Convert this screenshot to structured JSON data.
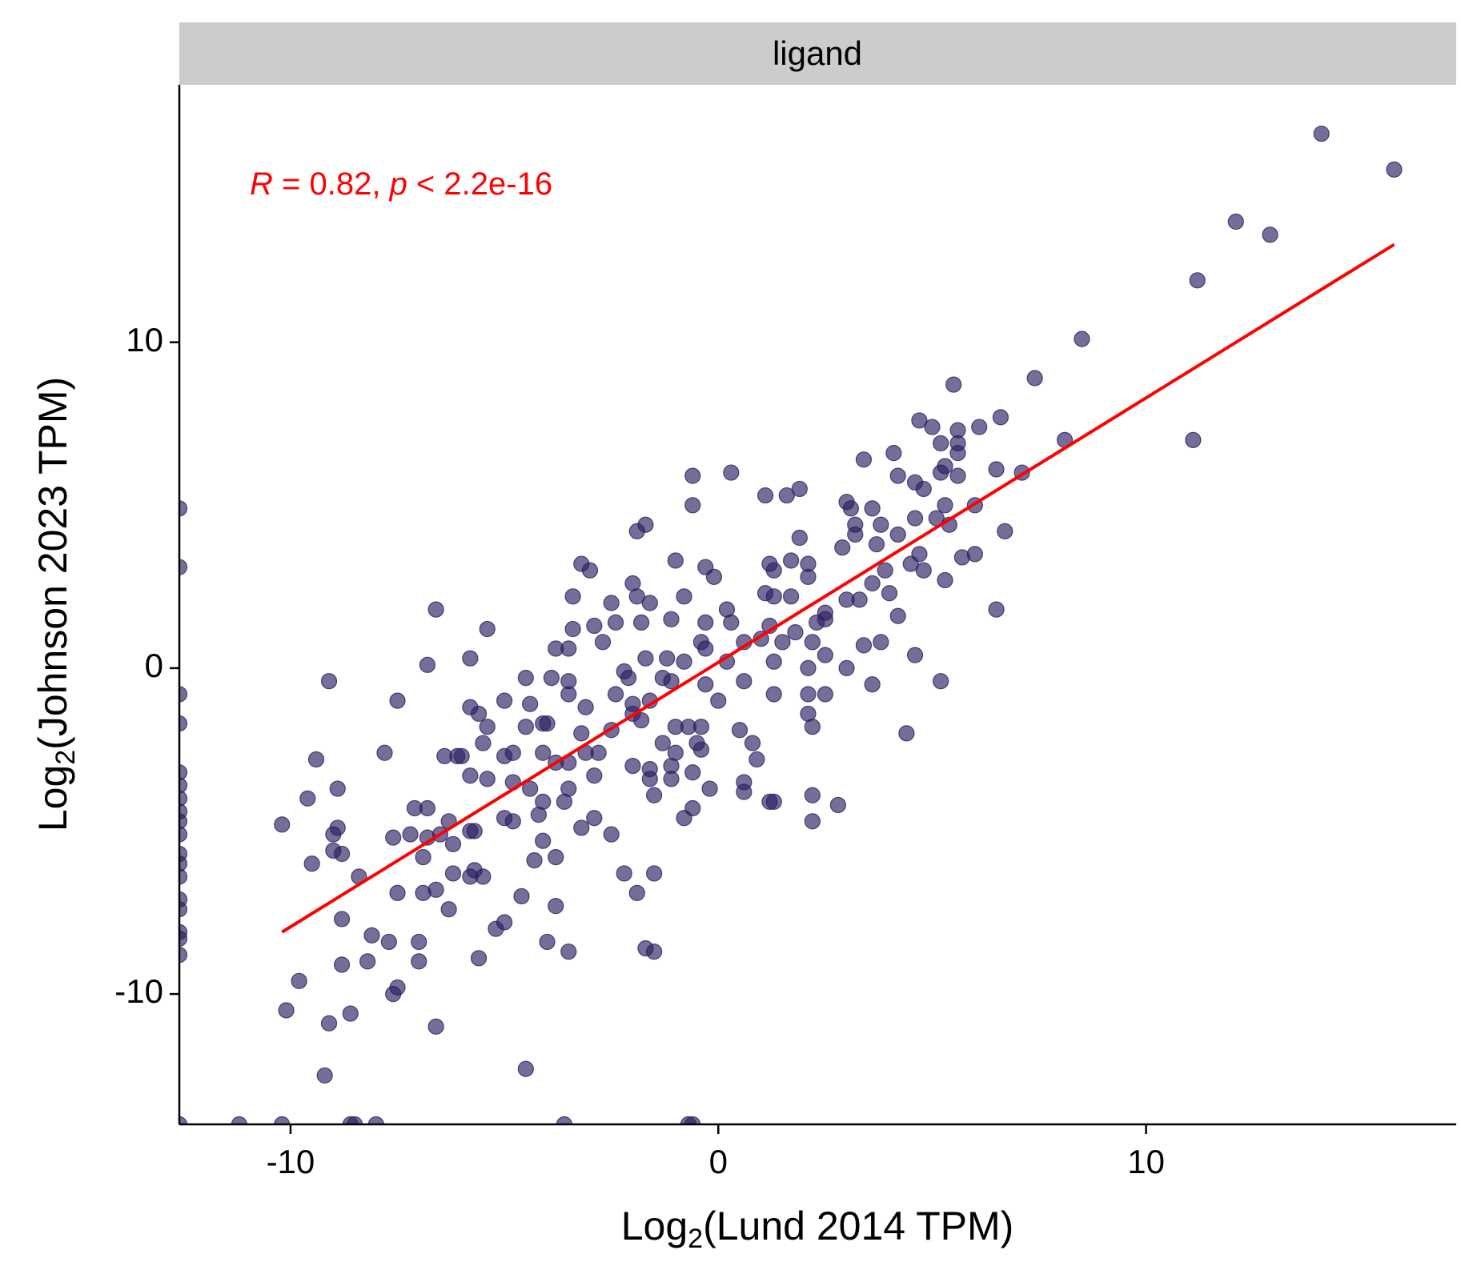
{
  "chart_data": {
    "type": "scatter",
    "facet_label": "ligand",
    "x_label": {
      "main": "Log",
      "sub": "2",
      "rest": "(Lund 2014 TPM)"
    },
    "y_label": {
      "main": "Log",
      "sub": "2",
      "rest": "(Johnson 2023 TPM)"
    },
    "annotation": {
      "r_symbol": "R",
      "r_text": " = 0.82, ",
      "p_symbol": "p",
      "p_text": " < 2.2e-16",
      "color": "#ff0000"
    },
    "xlim": [
      -12.6,
      17.25
    ],
    "ylim": [
      -14.0,
      17.9
    ],
    "xticks": [
      -10,
      0,
      10
    ],
    "yticks": [
      -10,
      0,
      10
    ],
    "series": [
      {
        "color": "#2d1e63",
        "x": [
          14.1,
          15.8,
          12.1,
          12.9,
          11.2,
          8.5,
          7.4,
          5.5,
          11.1,
          8.1,
          6.6,
          4.7,
          5.0,
          6.1,
          5.6,
          5.6,
          5.2,
          5.6,
          4.1,
          3.4,
          6.5,
          7.1,
          5.3,
          5.2,
          4.2,
          4.6,
          5.6,
          0.3,
          -0.6,
          1.9,
          1.1,
          1.6,
          4.8,
          3.0,
          3.6,
          3.1,
          6.0,
          5.3,
          -0.6,
          -1.7,
          -1.9,
          5.1,
          4.6,
          3.2,
          3.8,
          5.4,
          6.7,
          1.9,
          4.2,
          3.7,
          2.9,
          3.2,
          4.7,
          6.0,
          5.7,
          -1.0,
          -3.2,
          -3.0,
          -0.3,
          -0.1,
          1.2,
          1.3,
          1.7,
          2.1,
          4.5,
          3.9,
          4.8,
          5.3,
          3.6,
          -2.0,
          1.1,
          -0.8,
          -3.4,
          -1.9,
          1.3,
          1.7,
          2.1,
          3.0,
          4.0,
          -2.5,
          -1.6,
          0.2,
          -6.6,
          6.5,
          2.5,
          2.5,
          2.3,
          4.2,
          3.3,
          -3.4,
          -2.9,
          -2.4,
          -1.8,
          -1.1,
          -0.3,
          0.3,
          1.2,
          1.8,
          -5.4,
          -2.7,
          -0.4,
          1.0,
          1.5,
          2.2,
          3.4,
          3.8,
          4.6,
          -3.8,
          -3.5,
          0.6,
          -0.3,
          -1.2,
          -1.7,
          -5.8,
          2.5,
          -6.8,
          -2.2,
          -0.8,
          0.2,
          1.3,
          2.1,
          3.0,
          -9.1,
          -4.5,
          -3.9,
          -3.5,
          -2.4,
          -2.1,
          -1.3,
          -1.1,
          0.6,
          -0.3,
          1.3,
          2.1,
          2.5,
          3.6,
          5.2,
          -7.5,
          -5.8,
          -5.0,
          -4.4,
          -2.0,
          -1.6,
          0.0,
          -3.5,
          -5.6,
          -3.1,
          2.1,
          -4.1,
          -4.0,
          -2.5,
          -2.0,
          -1.8,
          -1.0,
          -0.7,
          -0.4,
          0.5,
          -5.4,
          -4.5,
          2.2,
          -3.2,
          4.4,
          -1.3,
          -0.5,
          0.8,
          -5.5,
          -7.8,
          -9.4,
          -6.4,
          -6.1,
          -6.0,
          -5.0,
          -4.8,
          -4.1,
          -3.1,
          -2.8,
          -1.0,
          -0.4,
          0.9,
          -3.8,
          -3.5,
          -2.0,
          -1.6,
          -1.1,
          -0.6,
          -2.9,
          -5.8,
          -5.4,
          -4.8,
          -1.6,
          -1.1,
          0.6,
          -8.9,
          -4.4,
          -3.5,
          -1.5,
          -0.2,
          0.6,
          1.3,
          1.2,
          2.2,
          -9.6,
          -4.1,
          -3.6,
          -7.1,
          -6.8,
          -0.6,
          2.8,
          -4.2,
          -0.8,
          -2.9,
          -5.0,
          -4.8,
          2.2,
          -10.2,
          -6.3,
          -3.2,
          -5.8,
          -5.7,
          -2.5,
          -9.0,
          -8.9,
          -7.6,
          -7.2,
          -6.8,
          -6.5,
          -4.1,
          -6.2,
          -9.0,
          -8.8,
          -6.9,
          -9.5,
          -4.3,
          -3.8,
          -8.4,
          -6.2,
          -5.8,
          -5.7,
          -5.5,
          -2.2,
          -1.5,
          -7.5,
          -6.9,
          -6.6,
          -4.6,
          -3.8,
          -1.9,
          -6.3,
          -8.8,
          -5.0,
          -5.2,
          -8.1,
          -7.7,
          -7.0,
          -4.0,
          -1.7,
          -1.5,
          -3.5,
          -8.8,
          -8.2,
          -7.0,
          -5.6,
          -9.8,
          -7.5,
          -7.6,
          -10.1,
          -8.6,
          -9.1,
          -6.6,
          -9.2,
          -4.5,
          -12.6,
          -11.2,
          -10.2,
          -8.6,
          -8.5,
          -8.0,
          -3.6,
          -0.7,
          -0.6,
          -12.6,
          -12.6,
          -12.6,
          -12.6,
          -12.6,
          -12.6,
          -12.6,
          -12.6,
          -12.6,
          -12.6,
          -12.6,
          -12.6,
          -12.6,
          -12.6,
          -12.6,
          -12.6,
          -12.6,
          -12.6
        ],
        "values": [
          16.4,
          15.3,
          13.7,
          13.3,
          11.9,
          10.1,
          8.9,
          8.7,
          7.0,
          7.0,
          7.7,
          7.6,
          7.4,
          7.4,
          7.3,
          6.9,
          6.9,
          6.6,
          6.6,
          6.4,
          6.1,
          6.0,
          6.2,
          6.0,
          5.9,
          5.7,
          5.9,
          6.0,
          5.9,
          5.5,
          5.3,
          5.3,
          5.5,
          5.1,
          4.9,
          4.9,
          5.0,
          5.0,
          5.0,
          4.4,
          4.2,
          4.6,
          4.6,
          4.4,
          4.4,
          4.4,
          4.2,
          4.0,
          4.1,
          3.8,
          3.7,
          4.1,
          3.5,
          3.5,
          3.4,
          3.3,
          3.2,
          3.0,
          3.1,
          2.8,
          3.2,
          3.0,
          3.3,
          3.2,
          3.2,
          3.0,
          3.0,
          2.7,
          2.6,
          2.6,
          2.3,
          2.2,
          2.2,
          2.2,
          2.2,
          2.2,
          2.8,
          2.1,
          2.3,
          2.0,
          2.0,
          1.8,
          1.8,
          1.8,
          1.7,
          1.5,
          1.4,
          1.6,
          2.1,
          1.2,
          1.3,
          1.4,
          1.4,
          1.5,
          1.4,
          1.4,
          1.3,
          1.1,
          1.2,
          0.8,
          0.8,
          0.9,
          0.8,
          0.8,
          0.7,
          0.8,
          0.4,
          0.6,
          0.6,
          0.8,
          0.6,
          0.3,
          0.3,
          0.3,
          0.4,
          0.1,
          -0.1,
          0.2,
          0.2,
          0.2,
          0.0,
          0.0,
          -0.4,
          -0.3,
          -0.3,
          -0.4,
          -0.8,
          -0.3,
          -0.3,
          -0.4,
          -0.4,
          -0.5,
          -0.8,
          -0.8,
          -0.8,
          -0.5,
          -0.4,
          -1.0,
          -1.2,
          -1.0,
          -1.1,
          -1.1,
          -1.0,
          -1.0,
          -0.8,
          -1.4,
          -1.2,
          -1.4,
          -1.7,
          -1.7,
          -1.9,
          -1.4,
          -1.6,
          -1.8,
          -1.8,
          -1.8,
          -1.9,
          -1.8,
          -1.8,
          -1.8,
          -2.0,
          -2.0,
          -2.3,
          -2.3,
          -2.3,
          -2.3,
          -2.6,
          -2.8,
          -2.7,
          -2.7,
          -2.7,
          -2.7,
          -2.6,
          -2.6,
          -2.6,
          -2.6,
          -2.6,
          -2.5,
          -2.8,
          -2.9,
          -2.9,
          -3.0,
          -3.1,
          -3.0,
          -3.2,
          -3.3,
          -3.3,
          -3.4,
          -3.5,
          -3.4,
          -3.4,
          -3.5,
          -3.7,
          -3.7,
          -3.7,
          -3.9,
          -3.7,
          -3.8,
          -4.1,
          -4.1,
          -3.9,
          -4.0,
          -4.1,
          -4.1,
          -4.3,
          -4.3,
          -4.3,
          -4.2,
          -4.5,
          -4.6,
          -4.6,
          -4.6,
          -4.7,
          -4.7,
          -4.8,
          -4.7,
          -4.9,
          -5.0,
          -5.0,
          -5.1,
          -5.1,
          -4.9,
          -5.2,
          -5.1,
          -5.2,
          -5.1,
          -5.3,
          -5.4,
          -5.6,
          -5.7,
          -5.8,
          -6.0,
          -5.9,
          -5.8,
          -6.4,
          -6.3,
          -6.4,
          -6.2,
          -6.4,
          -6.3,
          -6.3,
          -6.9,
          -6.9,
          -6.8,
          -7.0,
          -7.3,
          -6.9,
          -7.4,
          -7.7,
          -7.8,
          -8.0,
          -8.2,
          -8.4,
          -8.4,
          -8.4,
          -8.6,
          -8.7,
          -8.7,
          -9.1,
          -9.0,
          -9.0,
          -8.9,
          -9.6,
          -9.8,
          -10.0,
          -10.5,
          -10.6,
          -10.9,
          -11.0,
          -12.5,
          -12.3,
          -14.0,
          -14.0,
          -14.0,
          -14.0,
          -14.0,
          -14.0,
          -14.0,
          -14.0,
          -14.0,
          4.9,
          3.1,
          -0.8,
          -1.7,
          -3.2,
          -3.6,
          -4.0,
          -4.4,
          -4.7,
          -5.1,
          -5.7,
          -6.0,
          -6.4,
          -7.1,
          -7.4,
          -8.1,
          -8.3,
          -8.8
        ]
      }
    ],
    "fit": {
      "color": "#ff0000",
      "x": [
        -10.2,
        15.8
      ],
      "values": [
        -8.1,
        13.0
      ]
    }
  }
}
